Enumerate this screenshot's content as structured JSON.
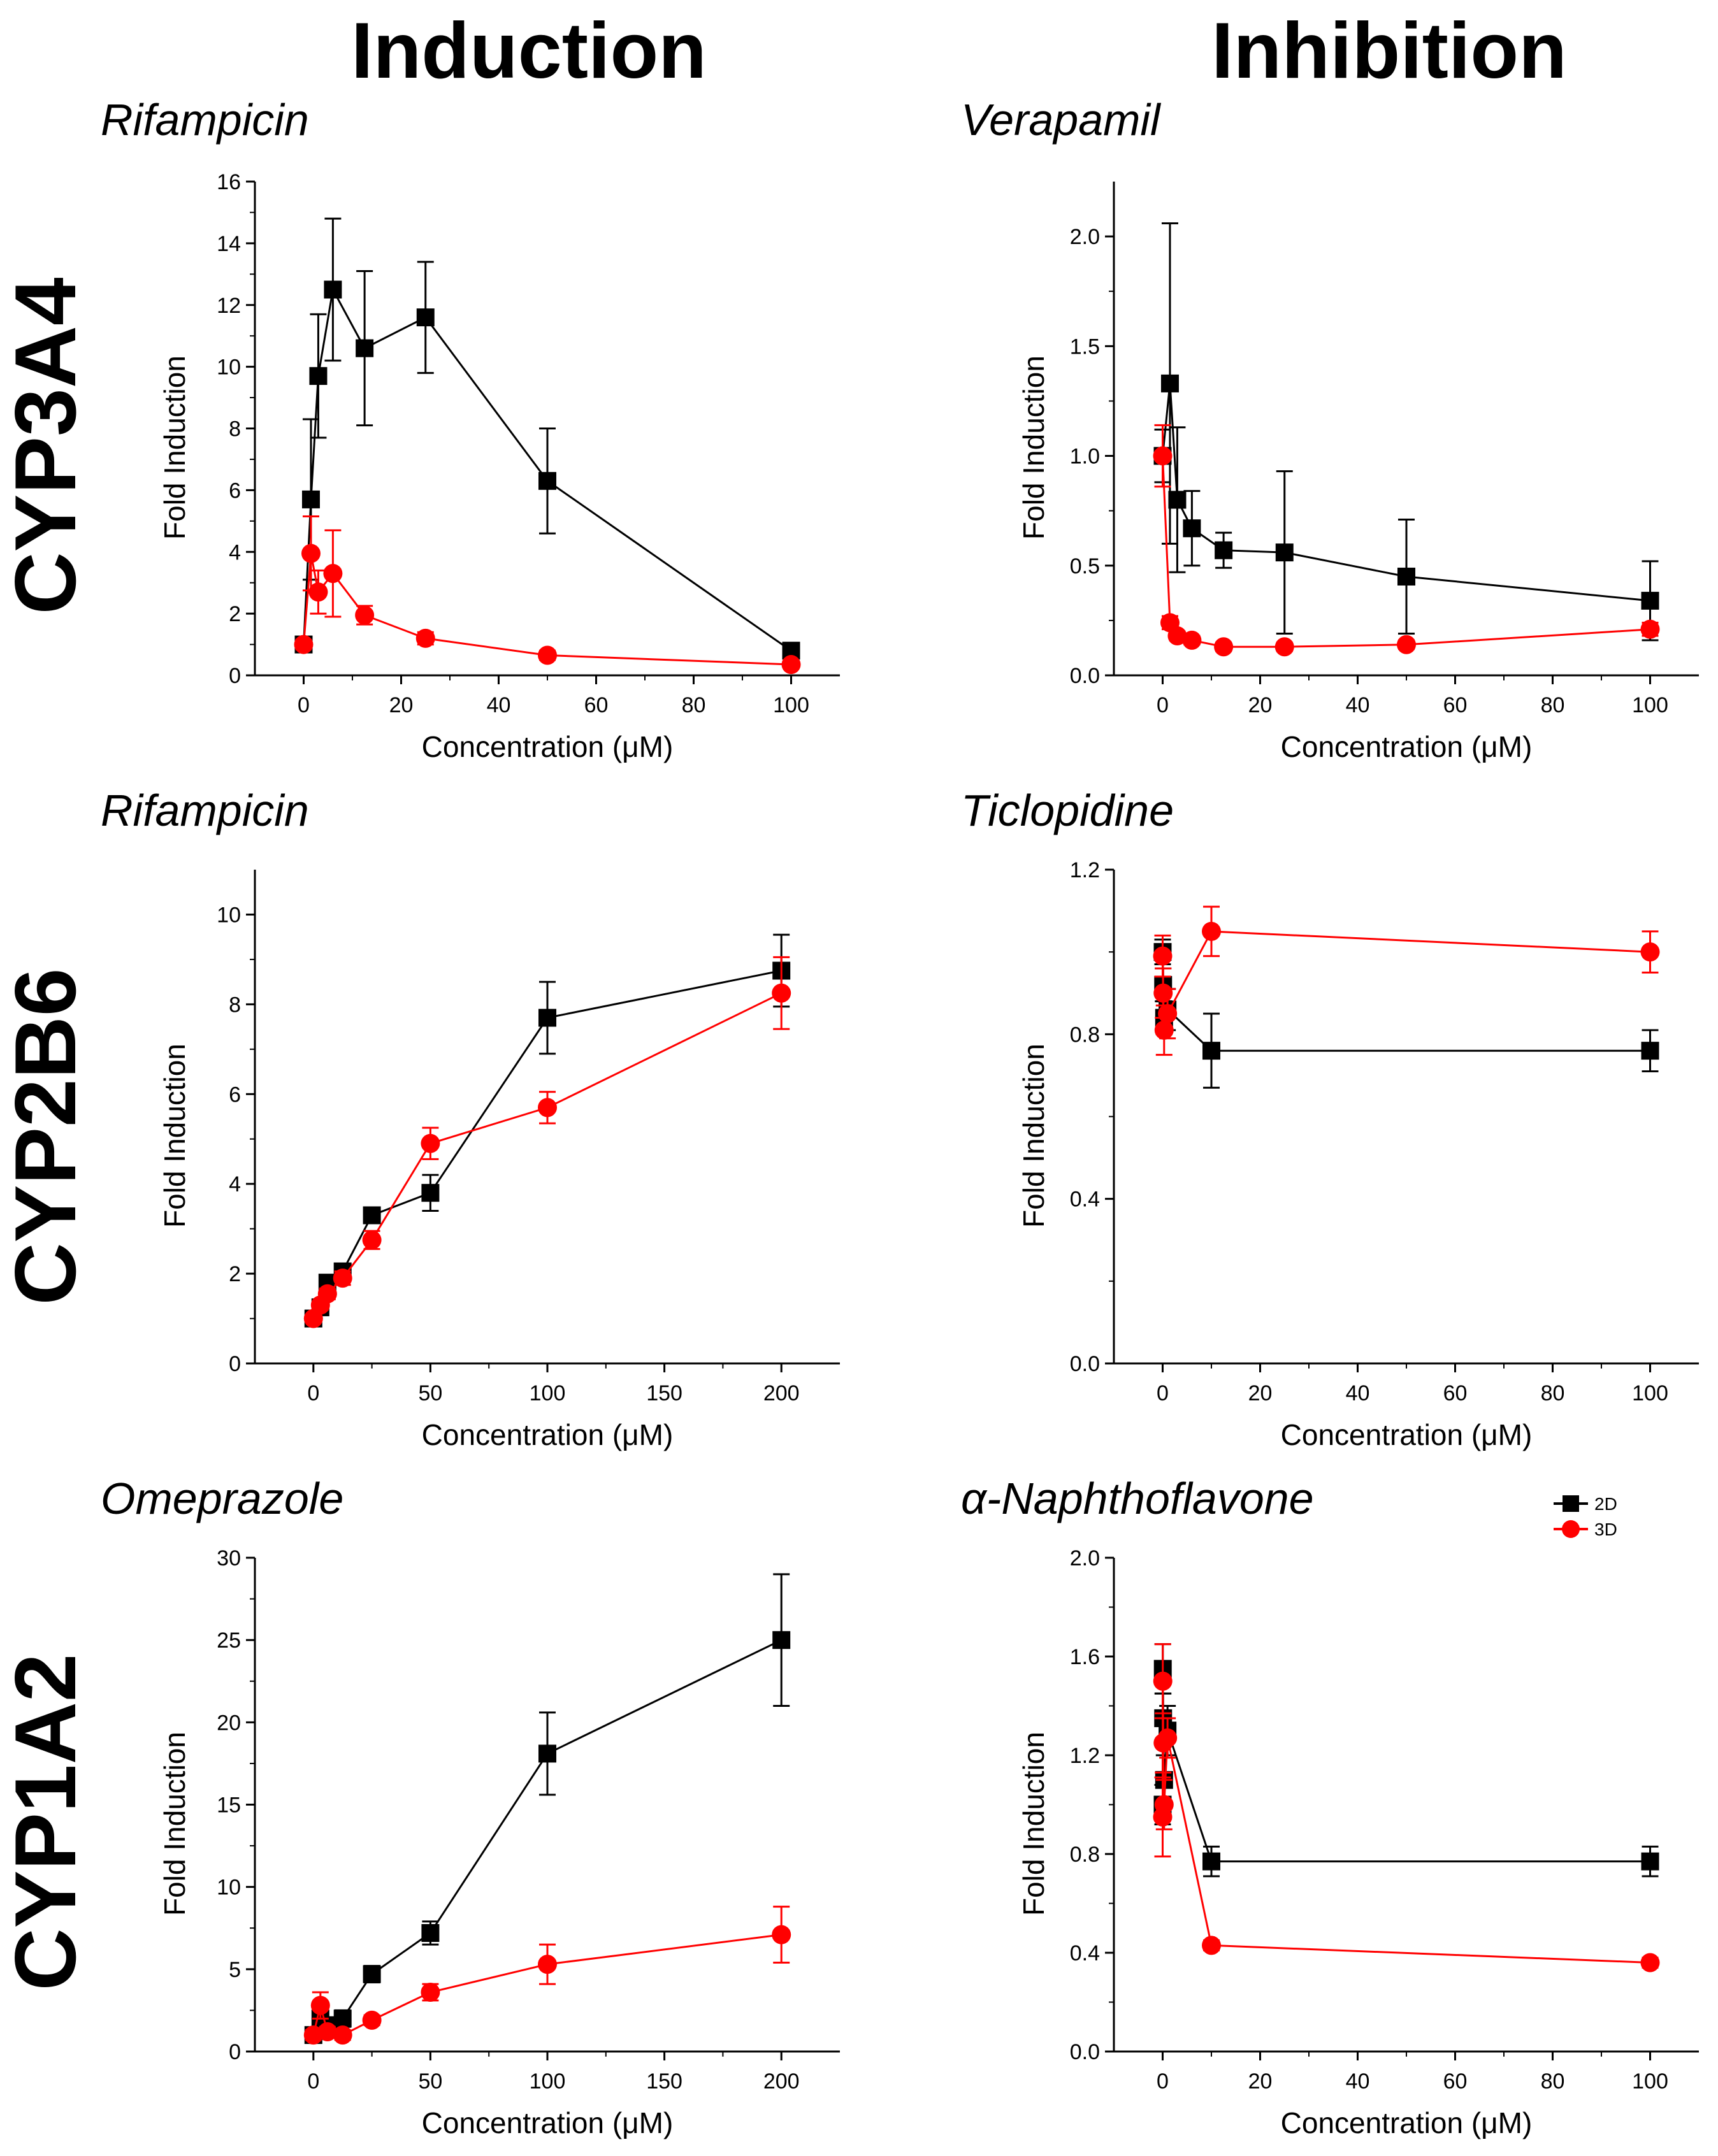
{
  "headers": {
    "induction": "Induction",
    "inhibition": "Inhibition"
  },
  "rows": [
    "CYP3A4",
    "CYP2B6",
    "CYP1A2"
  ],
  "legend": [
    {
      "name": "2D",
      "color": "#000000",
      "marker": "square"
    },
    {
      "name": "3D",
      "color": "#ff0000",
      "marker": "circle"
    }
  ],
  "chart_data": [
    {
      "id": "cyp3a4-induction",
      "type": "line",
      "title": "Rifampicin",
      "xlabel": "Concentration (μM)",
      "ylabel": "Fold Induction",
      "xlim": [
        -10,
        110
      ],
      "ylim": [
        0,
        16
      ],
      "xticks": [
        "0",
        "20",
        "40",
        "60",
        "80",
        "100"
      ],
      "xtick_values": [
        0,
        20,
        40,
        60,
        80,
        100
      ],
      "yticks": [
        "0",
        "2",
        "4",
        "6",
        "8",
        "10",
        "12",
        "14",
        "16"
      ],
      "ytick_values": [
        0,
        2,
        4,
        6,
        8,
        10,
        12,
        14,
        16
      ],
      "series": [
        {
          "name": "2D",
          "x": [
            0,
            1.5,
            3,
            6,
            12.5,
            25,
            50,
            100
          ],
          "values": [
            1.0,
            5.7,
            9.7,
            12.5,
            10.6,
            11.6,
            6.3,
            0.8
          ],
          "errors": [
            0.15,
            2.6,
            2.0,
            2.3,
            2.5,
            1.8,
            1.7,
            0.2
          ]
        },
        {
          "name": "3D",
          "x": [
            0,
            1.5,
            3,
            6,
            12.5,
            25,
            50,
            100
          ],
          "values": [
            1.0,
            3.95,
            2.7,
            3.3,
            1.95,
            1.2,
            0.65,
            0.35
          ],
          "errors": [
            0.15,
            1.2,
            0.7,
            1.4,
            0.3,
            0.2,
            0.15,
            0.1
          ]
        }
      ]
    },
    {
      "id": "cyp3a4-inhibition",
      "type": "line",
      "title": "Verapamil",
      "xlabel": "Concentration (μM)",
      "ylabel": "Fold Induction",
      "xlim": [
        -10,
        110
      ],
      "ylim": [
        0,
        2.25
      ],
      "xticks": [
        "0",
        "20",
        "40",
        "60",
        "80",
        "100"
      ],
      "xtick_values": [
        0,
        20,
        40,
        60,
        80,
        100
      ],
      "yticks": [
        "0.0",
        "0.5",
        "1.0",
        "1.5",
        "2.0"
      ],
      "ytick_values": [
        0,
        0.5,
        1.0,
        1.5,
        2.0
      ],
      "series": [
        {
          "name": "2D",
          "x": [
            0,
            1.5,
            3,
            6,
            12.5,
            25,
            50,
            100
          ],
          "values": [
            1.0,
            1.33,
            0.8,
            0.67,
            0.57,
            0.56,
            0.45,
            0.34
          ],
          "errors": [
            0.12,
            0.73,
            0.33,
            0.17,
            0.08,
            0.37,
            0.26,
            0.18
          ]
        },
        {
          "name": "3D",
          "x": [
            0,
            1.5,
            3,
            6,
            12.5,
            25,
            50,
            100
          ],
          "values": [
            1.0,
            0.24,
            0.18,
            0.16,
            0.13,
            0.13,
            0.14,
            0.21
          ],
          "errors": [
            0.14,
            0.03,
            0.02,
            0.02,
            0.02,
            0.02,
            0.02,
            0.03
          ]
        }
      ]
    },
    {
      "id": "cyp2b6-induction",
      "type": "line",
      "title": "Rifampicin",
      "xlabel": "Concentration (μM)",
      "ylabel": "Fold Induction",
      "xlim": [
        -25,
        225
      ],
      "ylim": [
        0,
        11
      ],
      "xticks": [
        "0",
        "50",
        "100",
        "150",
        "200"
      ],
      "xtick_values": [
        0,
        50,
        100,
        150,
        200
      ],
      "yticks": [
        "0",
        "2",
        "4",
        "6",
        "8",
        "10"
      ],
      "ytick_values": [
        0,
        2,
        4,
        6,
        8,
        10
      ],
      "series": [
        {
          "name": "2D",
          "x": [
            0,
            3,
            6,
            12.5,
            25,
            50,
            100,
            200
          ],
          "values": [
            1.0,
            1.25,
            1.8,
            2.05,
            3.3,
            3.8,
            7.7,
            8.75
          ],
          "errors": [
            0.08,
            0.1,
            0.12,
            0.15,
            0.15,
            0.4,
            0.8,
            0.8
          ]
        },
        {
          "name": "3D",
          "x": [
            0,
            3,
            6,
            12.5,
            25,
            50,
            100,
            200
          ],
          "values": [
            1.0,
            1.3,
            1.55,
            1.9,
            2.75,
            4.9,
            5.7,
            8.25
          ],
          "errors": [
            0.08,
            0.1,
            0.12,
            0.15,
            0.2,
            0.35,
            0.35,
            0.8
          ]
        }
      ]
    },
    {
      "id": "cyp2b6-inhibition",
      "type": "line",
      "title": "Ticlopidine",
      "xlabel": "Concentration (μM)",
      "ylabel": "Fold Induction",
      "xlim": [
        -10,
        110
      ],
      "ylim": [
        0,
        1.2
      ],
      "xticks": [
        "0",
        "20",
        "40",
        "60",
        "80",
        "100"
      ],
      "xtick_values": [
        0,
        20,
        40,
        60,
        80,
        100
      ],
      "yticks": [
        "0.0",
        "0.4",
        "0.8",
        "1.2"
      ],
      "ytick_values": [
        0,
        0.4,
        0.8,
        1.2
      ],
      "series": [
        {
          "name": "2D",
          "x": [
            0,
            0.1,
            0.3,
            1,
            10,
            100
          ],
          "values": [
            1.0,
            0.92,
            0.84,
            0.86,
            0.76,
            0.76
          ],
          "errors": [
            0.03,
            0.04,
            0.04,
            0.05,
            0.09,
            0.05
          ]
        },
        {
          "name": "3D",
          "x": [
            0,
            0.1,
            0.3,
            1,
            10,
            100
          ],
          "values": [
            0.99,
            0.9,
            0.81,
            0.85,
            1.05,
            1.0
          ],
          "errors": [
            0.05,
            0.06,
            0.06,
            0.06,
            0.06,
            0.05
          ]
        }
      ]
    },
    {
      "id": "cyp1a2-induction",
      "type": "line",
      "title": "Omeprazole",
      "xlabel": "Concentration (μM)",
      "ylabel": "Fold Induction",
      "xlim": [
        -25,
        225
      ],
      "ylim": [
        0,
        30
      ],
      "xticks": [
        "0",
        "50",
        "100",
        "150",
        "200"
      ],
      "xtick_values": [
        0,
        50,
        100,
        150,
        200
      ],
      "yticks": [
        "0",
        "5",
        "10",
        "15",
        "20",
        "25",
        "30"
      ],
      "ytick_values": [
        0,
        5,
        10,
        15,
        20,
        25,
        30
      ],
      "series": [
        {
          "name": "2D",
          "x": [
            0,
            3,
            6,
            12.5,
            25,
            50,
            100,
            200
          ],
          "values": [
            1.0,
            2.0,
            1.6,
            2.0,
            4.7,
            7.2,
            18.1,
            25.0
          ],
          "errors": [
            0.3,
            0.5,
            0.4,
            0.5,
            0.5,
            0.7,
            2.5,
            4.0
          ]
        },
        {
          "name": "3D",
          "x": [
            0,
            3,
            6,
            12.5,
            25,
            50,
            100,
            200
          ],
          "values": [
            1.0,
            2.8,
            1.2,
            1.0,
            1.9,
            3.6,
            5.3,
            7.1
          ],
          "errors": [
            0.3,
            0.8,
            0.3,
            0.3,
            0.3,
            0.5,
            1.2,
            1.7
          ]
        }
      ]
    },
    {
      "id": "cyp1a2-inhibition",
      "type": "line",
      "title": "α-Naphthoflavone",
      "xlabel": "Concentration (μM)",
      "ylabel": "Fold Induction",
      "xlim": [
        -10,
        110
      ],
      "ylim": [
        0,
        2.0
      ],
      "xticks": [
        "0",
        "20",
        "40",
        "60",
        "80",
        "100"
      ],
      "xtick_values": [
        0,
        20,
        40,
        60,
        80,
        100
      ],
      "yticks": [
        "0.0",
        "0.4",
        "0.8",
        "1.2",
        "1.6",
        "2.0"
      ],
      "ytick_values": [
        0,
        0.4,
        0.8,
        1.2,
        1.6,
        2.0
      ],
      "series": [
        {
          "name": "2D",
          "x": [
            0,
            0.03,
            0.1,
            0.3,
            1,
            10,
            100
          ],
          "values": [
            1.0,
            1.55,
            1.35,
            1.1,
            1.3,
            0.77,
            0.77
          ],
          "errors": [
            0.08,
            0.1,
            0.1,
            0.1,
            0.1,
            0.06,
            0.06
          ]
        },
        {
          "name": "3D",
          "x": [
            0,
            0.03,
            0.1,
            0.3,
            1,
            10,
            100
          ],
          "values": [
            0.95,
            1.5,
            1.25,
            1.0,
            1.27,
            0.43,
            0.36
          ],
          "errors": [
            0.16,
            0.15,
            0.12,
            0.1,
            0.08,
            0.02,
            0.02
          ]
        }
      ]
    }
  ]
}
